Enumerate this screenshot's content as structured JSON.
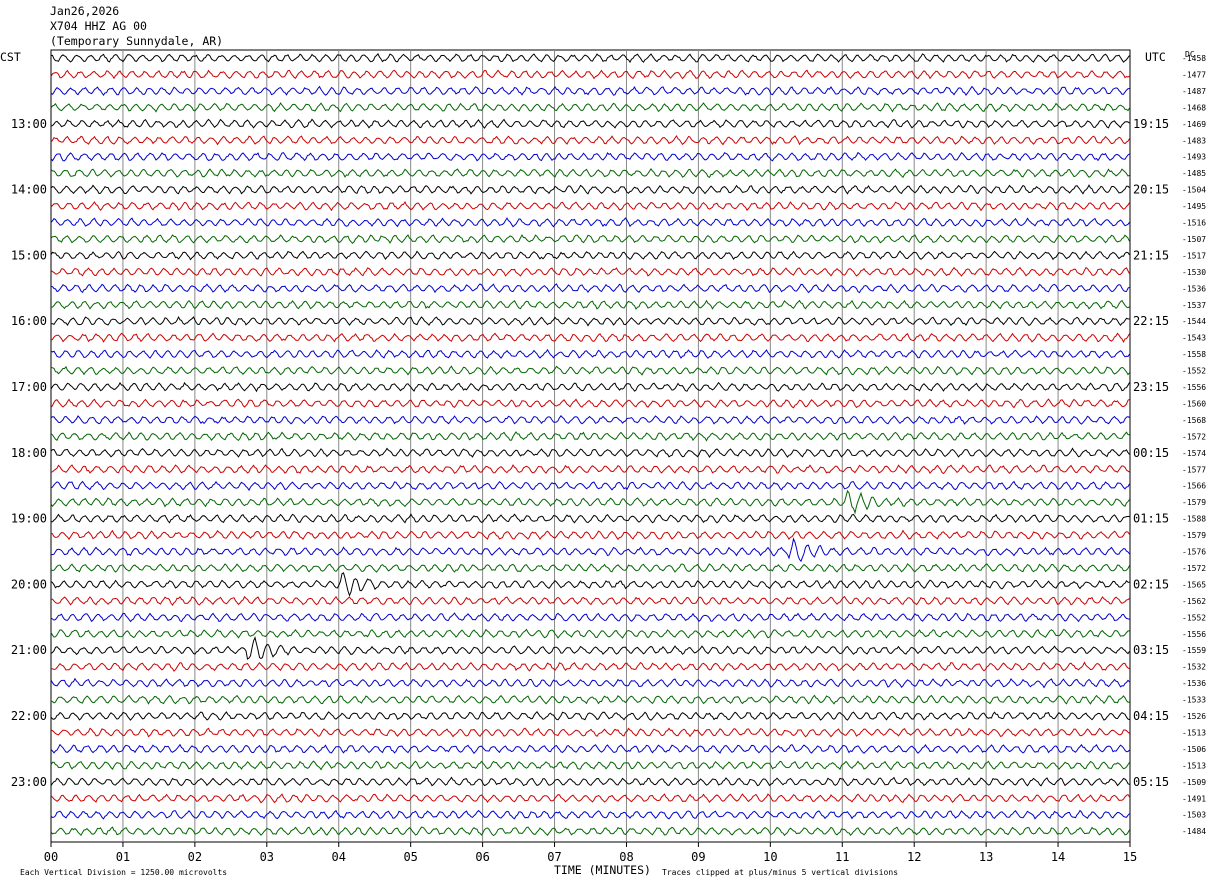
{
  "header": {
    "date": "Jan26,2026",
    "station": "X704 HHZ AG 00",
    "location": "(Temporary Sunnydale, AR)"
  },
  "left_tz": "CST",
  "right_tz": "UTC",
  "dc_label": "DC",
  "footer": {
    "scale_note": "Each Vertical Division = 1250.00 microvolts",
    "xlabel": "TIME (MINUTES)",
    "clip_note": "Traces clipped at plus/minus 5 vertical divisions"
  },
  "colors": {
    "trace_cycle": [
      "#000000",
      "#cc0000",
      "#0000cc",
      "#006600"
    ],
    "grid": "#888888"
  },
  "chart_data": {
    "type": "line",
    "title": "X704 HHZ AG 00",
    "xlabel": "TIME (MINUTES)",
    "xlim": [
      0,
      15
    ],
    "x_ticks": [
      "00",
      "01",
      "02",
      "03",
      "04",
      "05",
      "06",
      "07",
      "08",
      "09",
      "10",
      "11",
      "12",
      "13",
      "14",
      "15"
    ],
    "rows_per_hour": 4,
    "row_count": 48,
    "left_hour_labels": [
      "13:00",
      "14:00",
      "15:00",
      "16:00",
      "17:00",
      "18:00",
      "19:00",
      "20:00",
      "21:00",
      "22:00",
      "23:00"
    ],
    "right_hour_labels": [
      "19:15",
      "20:15",
      "21:15",
      "22:15",
      "23:15",
      "00:15",
      "01:15",
      "02:15",
      "03:15",
      "04:15",
      "05:15"
    ],
    "dc_values": [
      "-1458",
      "-1477",
      "-1487",
      "-1468",
      "-1469",
      "-1483",
      "-1493",
      "-1485",
      "-1504",
      "-1495",
      "-1516",
      "-1507",
      "-1517",
      "-1530",
      "-1536",
      "-1537",
      "-1544",
      "-1543",
      "-1558",
      "-1552",
      "-1556",
      "-1560",
      "-1568",
      "-1572",
      "-1574",
      "-1577",
      "-1566",
      "-1579",
      "-1588",
      "-1579",
      "-1576",
      "-1572",
      "-1565",
      "-1562",
      "-1552",
      "-1556",
      "-1559",
      "-1532",
      "-1536",
      "-1533",
      "-1526",
      "-1513",
      "-1506",
      "-1513",
      "-1509",
      "-1491",
      "-1503",
      "-1484"
    ],
    "events": [
      {
        "row": 30,
        "minute": 10.27,
        "label": "event burst"
      },
      {
        "row": 32,
        "minute": 4.05,
        "label": "event burst"
      },
      {
        "row": 36,
        "minute": 2.75,
        "label": "event burst"
      },
      {
        "row": 27,
        "minute": 11.05,
        "label": "event burst"
      }
    ]
  }
}
